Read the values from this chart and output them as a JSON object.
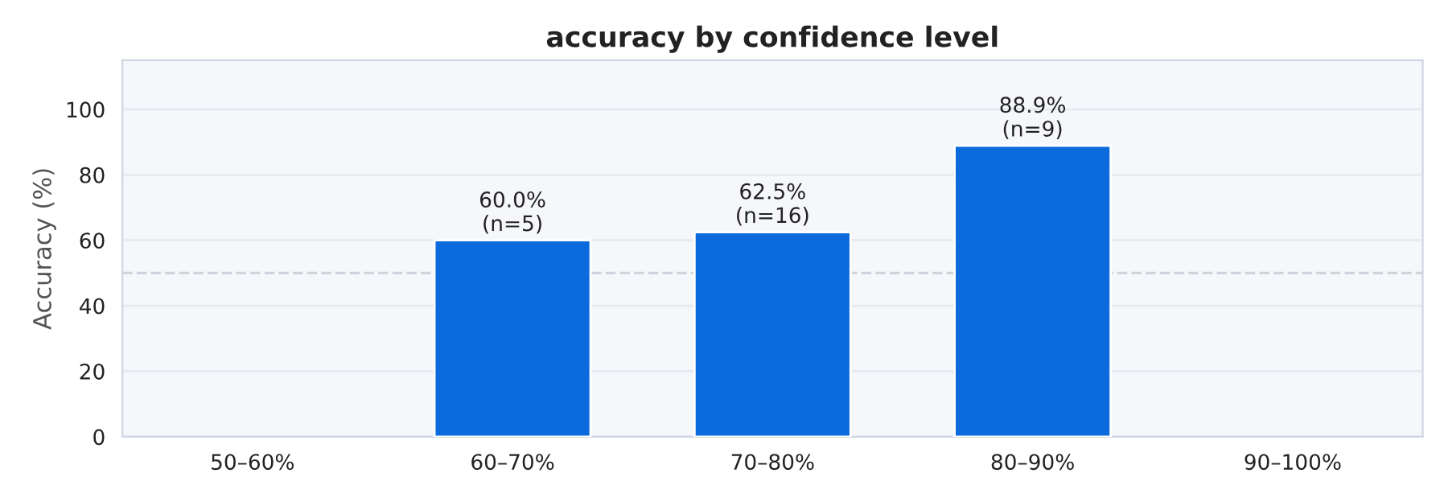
{
  "chart_data": {
    "type": "bar",
    "title": "accuracy by confidence level",
    "ylabel": "Accuracy (%)",
    "categories": [
      "50–60%",
      "60–70%",
      "70–80%",
      "80–90%",
      "90–100%"
    ],
    "values": [
      null,
      60.0,
      62.5,
      88.9,
      null
    ],
    "value_labels": [
      null,
      "60.0%\n(n=5)",
      "62.5%\n(n=16)",
      "88.9%\n(n=9)",
      null
    ],
    "color": "#0b6bdc",
    "ylim": [
      0,
      115
    ],
    "yticks": [
      0,
      20,
      40,
      60,
      80,
      100
    ],
    "grid": "y",
    "ref_lines": [
      {
        "axis": "y",
        "value": 50,
        "color": "#cfd4dc",
        "line_style": "dashed"
      }
    ]
  }
}
